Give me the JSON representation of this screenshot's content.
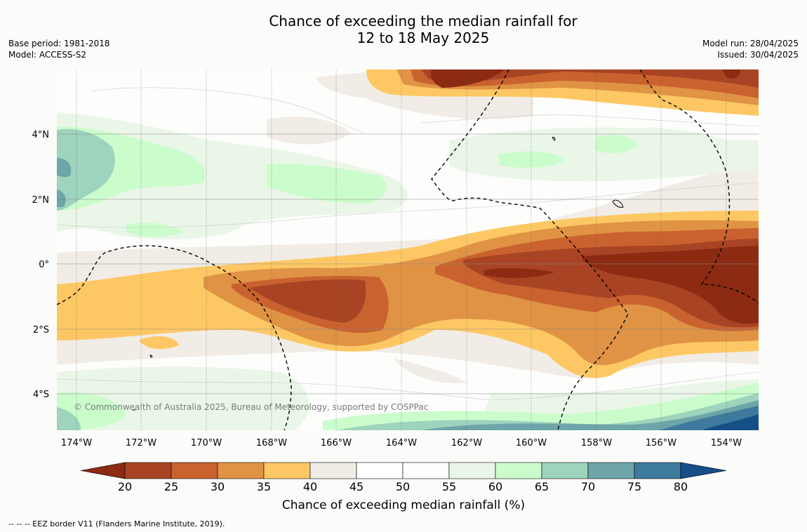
{
  "title": {
    "line1": "Chance of exceeding the median rainfall for",
    "line2": "12 to 18 May 2025"
  },
  "meta": {
    "base_period": "Base period: 1981-2018",
    "model": "Model: ACCESS-S2",
    "model_run": "Model run: 28/04/2025",
    "issued": "Issued: 30/04/2025"
  },
  "map": {
    "lon_ticks": [
      "174°W",
      "172°W",
      "170°W",
      "168°W",
      "166°W",
      "164°W",
      "162°W",
      "160°W",
      "158°W",
      "156°W",
      "154°W"
    ],
    "lat_ticks": [
      "4°N",
      "2°N",
      "0°",
      "2°S",
      "4°S"
    ],
    "copyright": "© Commonwealth of Australia 2025, Bureau of Meteorology, supported by COSPPac"
  },
  "colorbar": {
    "ticks": [
      "20",
      "25",
      "30",
      "35",
      "40",
      "45",
      "50",
      "55",
      "60",
      "65",
      "70",
      "75",
      "80"
    ],
    "colors": [
      "#8c2a12",
      "#a84424",
      "#c9622f",
      "#e09345",
      "#fdc864",
      "#f1ece6",
      "#ffffff",
      "#fcfefb",
      "#eaf6e8",
      "#cbfccc",
      "#9ed3bd",
      "#6ea5a8",
      "#3e7a9e",
      "#164f86"
    ],
    "title": "Chance of exceeding median rainfall (%)"
  },
  "footnote": "-- -- -- EEZ border V11 (Flanders Marine Institute, 2019)."
}
